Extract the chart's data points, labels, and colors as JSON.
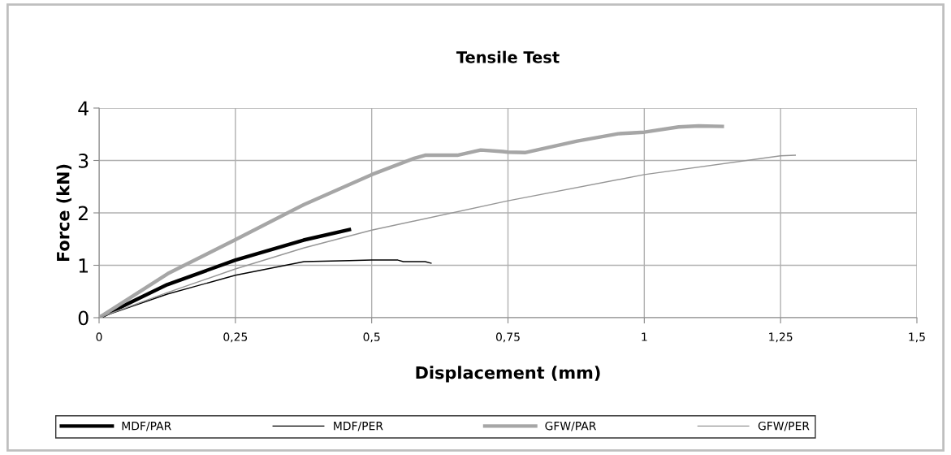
{
  "chart_data": {
    "type": "line",
    "title": "Tensile Test",
    "xlabel": "Displacement (mm)",
    "ylabel": "Force (kN)",
    "xlim": [
      0,
      1.5
    ],
    "ylim": [
      0,
      4
    ],
    "xticks": [
      0,
      {
        "value": 0.25,
        "label": "0,25"
      },
      {
        "value": 0.5,
        "label": "0,5"
      },
      {
        "value": 0.75,
        "label": "0,75"
      },
      1,
      {
        "value": 1.25,
        "label": "1,25"
      },
      {
        "value": 1.5,
        "label": "1,5"
      }
    ],
    "yticks": [
      0,
      1,
      2,
      3,
      4
    ],
    "grid": true,
    "legend": "bottom",
    "marker": "none",
    "line_style": "solid",
    "series": [
      {
        "name": "MDF/PAR",
        "color": "#000000",
        "x": [
          0,
          0.125,
          0.25,
          0.375,
          0.459
        ],
        "values": [
          0,
          0.63,
          1.1,
          1.48,
          1.68
        ]
      },
      {
        "name": "MDF/PER",
        "color": "#000000",
        "x": [
          0,
          0.125,
          0.25,
          0.376,
          0.459,
          0.5,
          0.548,
          0.558,
          0.598,
          0.609
        ],
        "values": [
          0,
          0.45,
          0.81,
          1.07,
          1.09,
          1.1,
          1.1,
          1.07,
          1.07,
          1.04
        ]
      },
      {
        "name": "GFW/PAR",
        "color": "#a6a6a6",
        "x": [
          0,
          0.126,
          0.25,
          0.376,
          0.5,
          0.578,
          0.598,
          0.657,
          0.7,
          0.74,
          0.75,
          0.781,
          0.877,
          0.952,
          1.0,
          1.063,
          1.1,
          1.143
        ],
        "values": [
          0,
          0.84,
          1.49,
          2.16,
          2.73,
          3.04,
          3.1,
          3.1,
          3.2,
          3.17,
          3.16,
          3.15,
          3.37,
          3.51,
          3.54,
          3.64,
          3.66,
          3.65
        ]
      },
      {
        "name": "GFW/PER",
        "color": "#969696",
        "x": [
          0,
          0.125,
          0.25,
          0.375,
          0.5,
          0.75,
          1.0,
          1.25,
          1.277
        ],
        "values": [
          0,
          0.48,
          0.93,
          1.33,
          1.67,
          2.23,
          2.73,
          3.09,
          3.1
        ]
      }
    ]
  }
}
